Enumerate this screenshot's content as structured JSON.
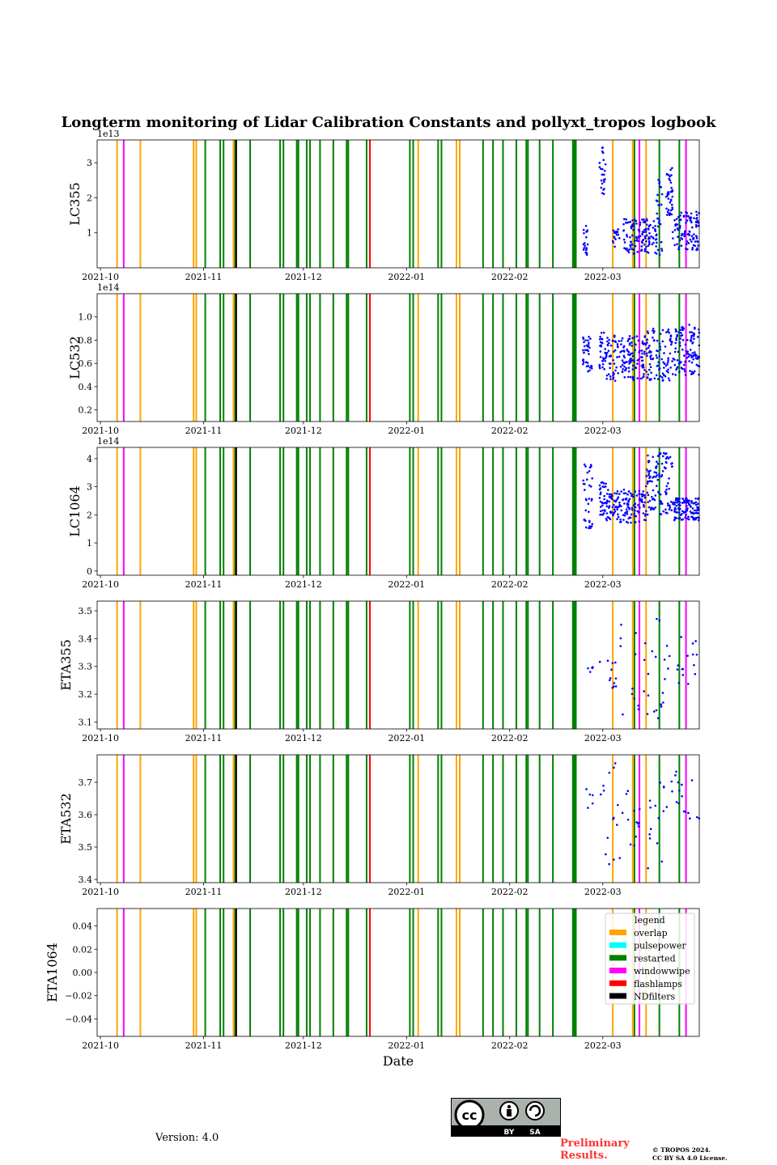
{
  "title": "Longterm monitoring of Lidar Calibration Constants and pollyxt_tropos logbook",
  "xlabel": "Date",
  "version_text": "Version: 4.0",
  "prelim_line1": "Preliminary",
  "prelim_line2": "Results.",
  "copyright_line1": "© TROPOS 2024.",
  "copyright_line2": "CC BY SA 4.0 License.",
  "cc_badge": {
    "cc": "cc",
    "by": "BY",
    "sa": "SA"
  },
  "chart_data": {
    "type": "scatter",
    "x_range": [
      "2021-09-30",
      "2022-03-30"
    ],
    "x_ticks": [
      "2021-10",
      "2021-11",
      "2021-12",
      "2022-01",
      "2022-02",
      "2022-03"
    ],
    "x_tick_values": [
      0,
      31,
      61,
      92,
      123,
      151
    ],
    "x_domain_days": [
      -1,
      180
    ],
    "logbook_events": {
      "overlap": [
        5,
        12,
        28,
        28.8,
        40,
        95.5,
        107,
        108,
        154,
        160,
        164
      ],
      "windowwipe": [
        7,
        162,
        176
      ],
      "restarted": [
        31.5,
        36,
        37,
        40.5,
        45,
        54,
        55,
        59,
        59.5,
        62,
        63,
        66,
        70,
        74,
        74.5,
        80,
        93,
        94,
        101.5,
        102.5,
        108,
        115,
        118,
        121,
        125,
        128,
        128.5,
        132,
        136,
        142,
        142.3,
        142.6,
        142.9,
        160.5,
        168,
        174
      ],
      "flashlamps": [
        81
      ],
      "NDfilters": [
        40.8
      ]
    },
    "legend": {
      "title": "legend",
      "entries": [
        {
          "label": "overlap",
          "color": "#ffa500"
        },
        {
          "label": "pulsepower",
          "color": "#00ffff"
        },
        {
          "label": "restarted",
          "color": "#008000"
        },
        {
          "label": "windowwipe",
          "color": "#ff00ff"
        },
        {
          "label": "flashlamps",
          "color": "#ff0000"
        },
        {
          "label": "NDfilters",
          "color": "#000000"
        }
      ]
    },
    "panels": [
      {
        "ylabel": "LC355",
        "offset_text": "1e13",
        "ylim": [
          0.0,
          3.65
        ],
        "yticks": [
          1,
          2,
          3
        ],
        "ytick_labels": [
          "1",
          "2",
          "3"
        ],
        "segments": [
          {
            "x0": 145,
            "x1": 146.5,
            "lo": 0.2,
            "hi": 1.2,
            "n": 20
          },
          {
            "x0": 150,
            "x1": 152,
            "lo": 2.1,
            "hi": 3.5,
            "n": 25
          },
          {
            "x0": 154,
            "x1": 156,
            "lo": 0.6,
            "hi": 1.1,
            "n": 18
          },
          {
            "x0": 157,
            "x1": 167,
            "lo": 0.4,
            "hi": 1.4,
            "n": 120
          },
          {
            "x0": 167,
            "x1": 169,
            "lo": 0.3,
            "hi": 2.6,
            "n": 30
          },
          {
            "x0": 170,
            "x1": 172,
            "lo": 1.5,
            "hi": 2.9,
            "n": 40
          },
          {
            "x0": 172,
            "x1": 180,
            "lo": 0.5,
            "hi": 1.6,
            "n": 100
          }
        ]
      },
      {
        "ylabel": "LC532",
        "offset_text": "1e14",
        "ylim": [
          0.1,
          1.2
        ],
        "yticks": [
          0.2,
          0.4,
          0.6,
          0.8,
          1.0
        ],
        "ytick_labels": [
          "0.2",
          "0.4",
          "0.6",
          "0.8",
          "1.0"
        ],
        "segments": [
          {
            "x0": 145,
            "x1": 148,
            "lo": 0.52,
            "hi": 0.85,
            "n": 35
          },
          {
            "x0": 150,
            "x1": 152,
            "lo": 0.55,
            "hi": 0.9,
            "n": 30
          },
          {
            "x0": 152,
            "x1": 164,
            "lo": 0.45,
            "hi": 0.85,
            "n": 150
          },
          {
            "x0": 164,
            "x1": 172,
            "lo": 0.45,
            "hi": 0.9,
            "n": 100
          },
          {
            "x0": 172,
            "x1": 180,
            "lo": 0.5,
            "hi": 0.95,
            "n": 110
          }
        ]
      },
      {
        "ylabel": "LC1064",
        "offset_text": "1e14",
        "ylim": [
          -0.15,
          4.4
        ],
        "yticks": [
          0,
          1,
          2,
          3,
          4
        ],
        "ytick_labels": [
          "0",
          "1",
          "2",
          "3",
          "4"
        ],
        "segments": [
          {
            "x0": 145,
            "x1": 148,
            "lo": 1.5,
            "hi": 3.8,
            "n": 35
          },
          {
            "x0": 150,
            "x1": 152,
            "lo": 2.0,
            "hi": 3.2,
            "n": 30
          },
          {
            "x0": 152,
            "x1": 164,
            "lo": 1.7,
            "hi": 2.9,
            "n": 150
          },
          {
            "x0": 164,
            "x1": 172,
            "lo": 2.0,
            "hi": 4.2,
            "n": 110
          },
          {
            "x0": 172,
            "x1": 180,
            "lo": 1.8,
            "hi": 2.6,
            "n": 110
          }
        ]
      },
      {
        "ylabel": "ETA355",
        "offset_text": "",
        "ylim": [
          3.075,
          3.535
        ],
        "yticks": [
          3.1,
          3.2,
          3.3,
          3.4,
          3.5
        ],
        "ytick_labels": [
          "3.1",
          "3.2",
          "3.3",
          "3.4",
          "3.5"
        ],
        "segments": [
          {
            "x0": 146,
            "x1": 148,
            "lo": 3.28,
            "hi": 3.34,
            "n": 5
          },
          {
            "x0": 150,
            "x1": 155,
            "lo": 3.17,
            "hi": 3.34,
            "n": 12
          },
          {
            "x0": 155,
            "x1": 170,
            "lo": 3.09,
            "hi": 3.51,
            "n": 30
          },
          {
            "x0": 170,
            "x1": 180,
            "lo": 3.22,
            "hi": 3.41,
            "n": 18
          }
        ]
      },
      {
        "ylabel": "ETA532",
        "offset_text": "",
        "ylim": [
          3.39,
          3.785
        ],
        "yticks": [
          3.4,
          3.5,
          3.6,
          3.7
        ],
        "ytick_labels": [
          "3.4",
          "3.5",
          "3.6",
          "3.7"
        ],
        "segments": [
          {
            "x0": 146,
            "x1": 148,
            "lo": 3.57,
            "hi": 3.69,
            "n": 5
          },
          {
            "x0": 150,
            "x1": 155,
            "lo": 3.41,
            "hi": 3.77,
            "n": 12
          },
          {
            "x0": 155,
            "x1": 170,
            "lo": 3.43,
            "hi": 3.71,
            "n": 30
          },
          {
            "x0": 170,
            "x1": 180,
            "lo": 3.58,
            "hi": 3.74,
            "n": 18
          }
        ]
      },
      {
        "ylabel": "ETA1064",
        "offset_text": "",
        "ylim": [
          -0.055,
          0.055
        ],
        "yticks": [
          -0.04,
          -0.02,
          0.0,
          0.02,
          0.04
        ],
        "ytick_labels": [
          "−0.04",
          "−0.02",
          "0.00",
          "0.02",
          "0.04"
        ],
        "segments": []
      }
    ]
  }
}
